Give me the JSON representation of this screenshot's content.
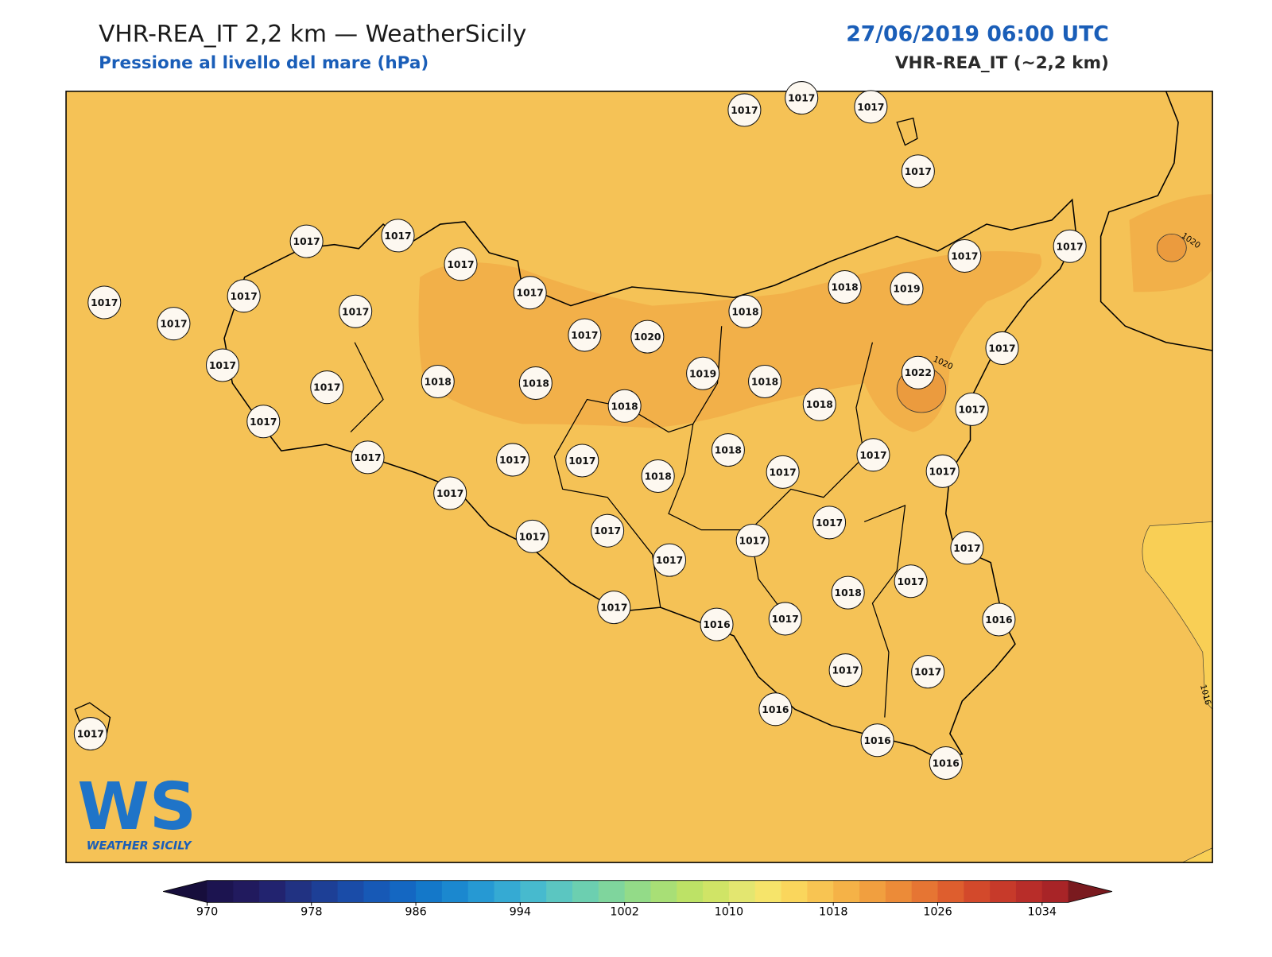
{
  "header": {
    "title": "VHR-REA_IT 2,2 km — WeatherSicily",
    "subtitle": "Pressione al livello del mare (hPa)",
    "date": "27/06/2019 06:00 UTC",
    "model": "VHR-REA_IT (~2,2 km)"
  },
  "map": {
    "stations": [
      1017,
      1017,
      1017,
      1017,
      1017,
      1017,
      1017,
      1017,
      1017,
      1017,
      1017,
      1017,
      1017,
      1017,
      1018,
      1019,
      1018,
      1017,
      1020,
      1017,
      1017,
      1019,
      1022,
      1017,
      1018,
      1018,
      1018,
      1018,
      1018,
      1017,
      1017,
      1018,
      1017,
      1017,
      1017,
      1017,
      1018,
      1017,
      1017,
      1017,
      1017,
      1017,
      1017,
      1017,
      1017,
      1017,
      1017,
      1018,
      1017,
      1016,
      1017,
      1016,
      1017,
      1017,
      1016,
      1016,
      1016,
      1017
    ],
    "contour_labels": [
      "1020",
      "1020",
      "1016"
    ]
  },
  "logo": {
    "mark": "WS",
    "text": "WEATHER SICILY"
  },
  "colorbar": {
    "ticks": [
      970,
      978,
      986,
      994,
      1002,
      1010,
      1018,
      1026,
      1034
    ],
    "colors": [
      "#1c1450",
      "#211a5e",
      "#22236f",
      "#213282",
      "#1d3f96",
      "#1a4ca8",
      "#1759b6",
      "#1467c2",
      "#1478c9",
      "#1b88cf",
      "#2699d3",
      "#35aad3",
      "#47bace",
      "#5bc6c1",
      "#6ccfb0",
      "#7fd59d",
      "#93db88",
      "#a8df76",
      "#bde266",
      "#d0e466",
      "#e3e670",
      "#f6e46a",
      "#fad65c",
      "#f8c452",
      "#f5b247",
      "#f19f3f",
      "#ec8b38",
      "#e67533",
      "#de5e2e",
      "#d3492b",
      "#c73a2a",
      "#b82d29",
      "#a82427"
    ],
    "low_color": "#170e3c",
    "high_color": "#7a1a1f"
  }
}
